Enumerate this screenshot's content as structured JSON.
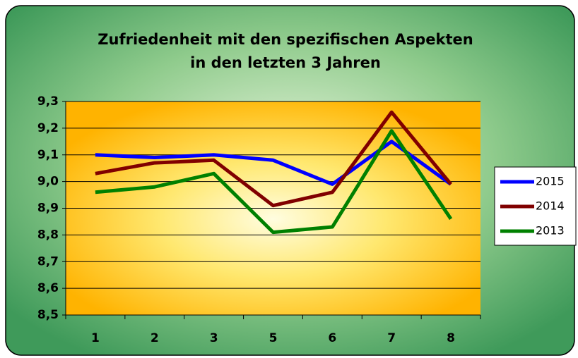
{
  "chart_data": {
    "type": "line",
    "title": "Zufriedenheit mit den spezifischen Aspekten",
    "subtitle": "in den letzten 3 Jahren",
    "categories": [
      "1",
      "2",
      "3",
      "5",
      "6",
      "7",
      "8"
    ],
    "series": [
      {
        "name": "2015",
        "color": "#0000ff",
        "values": [
          9.1,
          9.09,
          9.1,
          9.08,
          8.99,
          9.15,
          8.99
        ]
      },
      {
        "name": "2014",
        "color": "#800000",
        "values": [
          9.03,
          9.07,
          9.08,
          8.91,
          8.96,
          9.26,
          8.99
        ]
      },
      {
        "name": "2013",
        "color": "#008000",
        "values": [
          8.96,
          8.98,
          9.03,
          8.81,
          8.83,
          9.19,
          8.86
        ]
      }
    ],
    "ylim": [
      8.5,
      9.3
    ],
    "yticks": [
      {
        "value": 8.5,
        "label": "8,5"
      },
      {
        "value": 8.6,
        "label": "8,6"
      },
      {
        "value": 8.7,
        "label": "8,7"
      },
      {
        "value": 8.8,
        "label": "8,8"
      },
      {
        "value": 8.9,
        "label": "8,9"
      },
      {
        "value": 9.0,
        "label": "9,0"
      },
      {
        "value": 9.1,
        "label": "9,1"
      },
      {
        "value": 9.2,
        "label": "9,2"
      },
      {
        "value": 9.3,
        "label": "9,3"
      }
    ],
    "grid": true,
    "legend": "right"
  }
}
